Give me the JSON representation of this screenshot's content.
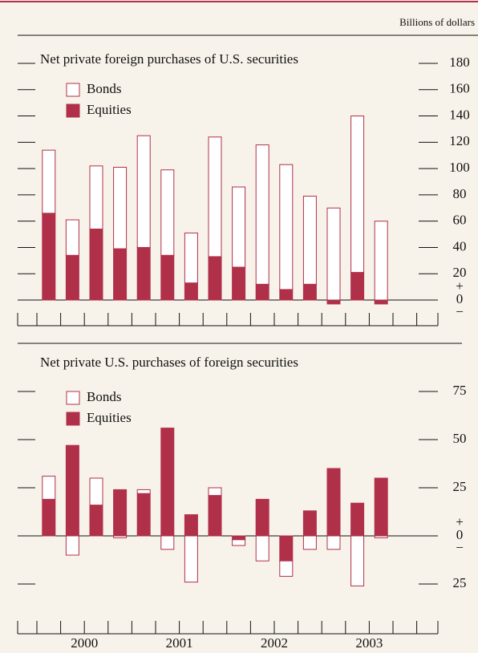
{
  "unit_label": "Billions of dollars",
  "chart_data": [
    {
      "type": "bar",
      "stacked": true,
      "title": "Net private foreign purchases of U.S. securities",
      "series": [
        {
          "name": "Bonds",
          "color": "#ffffff",
          "values": [
            48,
            27,
            48,
            62,
            85,
            65,
            38,
            91,
            61,
            106,
            95,
            67,
            70,
            119,
            60
          ]
        },
        {
          "name": "Equities",
          "color": "#b0304a",
          "values": [
            66,
            34,
            54,
            39,
            40,
            34,
            13,
            33,
            25,
            12,
            8,
            12,
            -3,
            21,
            -3
          ]
        }
      ],
      "ylim": [
        0,
        180
      ],
      "yticks": [
        0,
        20,
        40,
        60,
        80,
        100,
        120,
        140,
        160,
        180
      ],
      "zero_signs": [
        "+",
        "−"
      ]
    },
    {
      "type": "bar",
      "stacked": true,
      "title": "Net private U.S. purchases of foreign securities",
      "series": [
        {
          "name": "Bonds",
          "color": "#ffffff",
          "values": [
            12,
            -10,
            14,
            -1,
            2,
            -7,
            -24,
            4,
            -3,
            -13,
            -8,
            -7,
            -7,
            -26,
            -1
          ]
        },
        {
          "name": "Equities",
          "color": "#b0304a",
          "values": [
            19,
            47,
            16,
            24,
            22,
            56,
            11,
            21,
            -2,
            19,
            -13,
            13,
            35,
            17,
            30
          ]
        }
      ],
      "ylim": [
        -25,
        75
      ],
      "yticks": [
        {
          "value": -25,
          "label": "25"
        },
        0,
        25,
        50,
        75
      ],
      "zero_signs": [
        "+",
        "−"
      ],
      "year_labels": [
        "2000",
        "2001",
        "2002",
        "2003"
      ]
    }
  ]
}
